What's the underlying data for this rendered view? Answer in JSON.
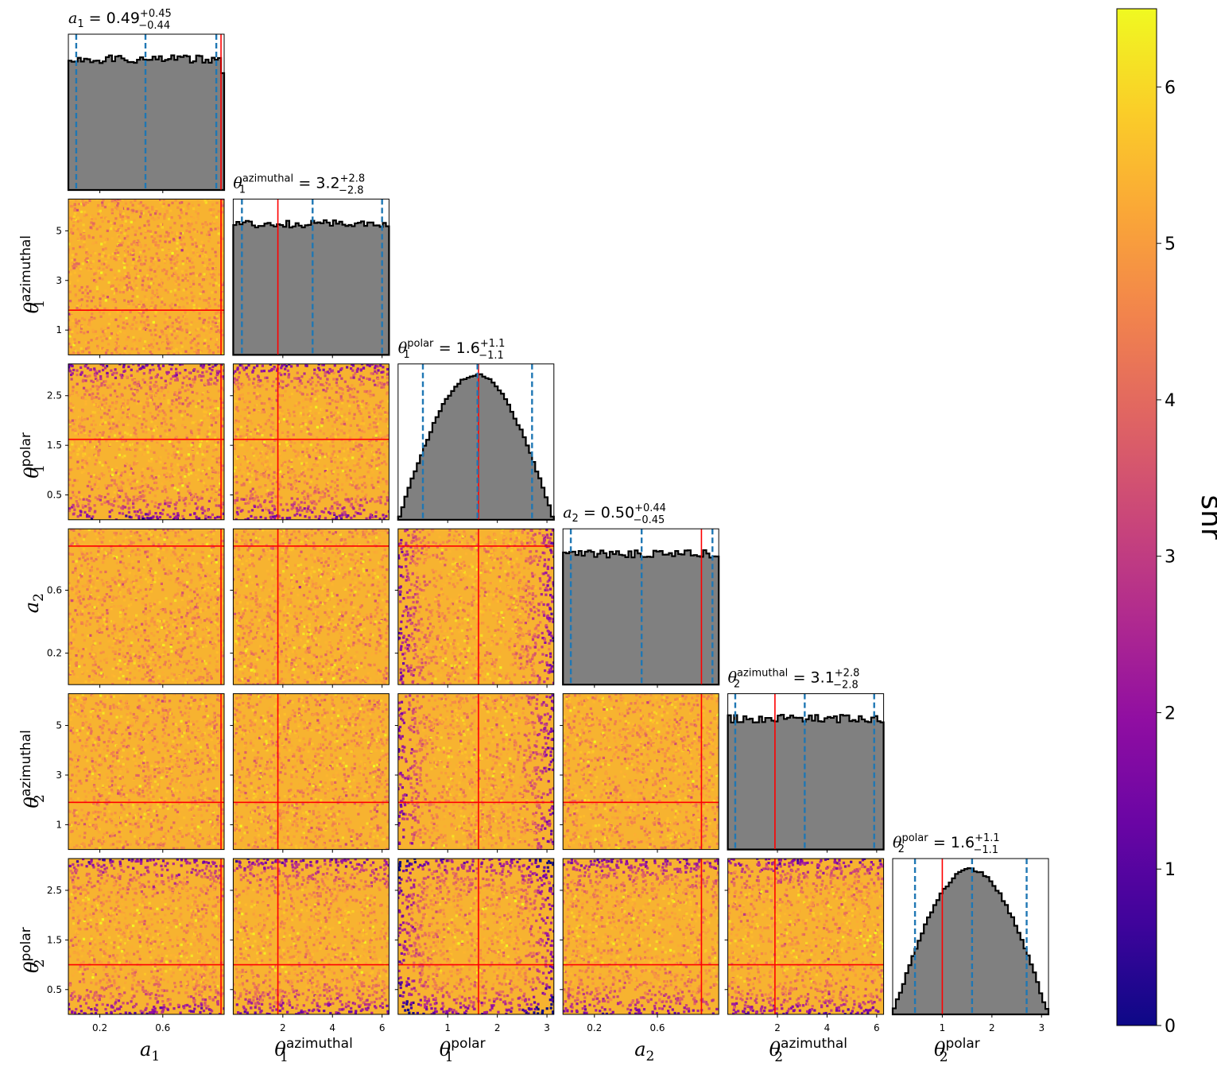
{
  "chart_data": {
    "type": "corner",
    "params": [
      {
        "key": "a1",
        "symbol": "a",
        "sub": "1",
        "sup": "",
        "range": [
          0.0,
          0.99
        ],
        "ticks": [
          0.2,
          0.6
        ],
        "tick_labels": [
          "0.2",
          "0.6"
        ],
        "truth": 0.97,
        "quantiles": [
          0.05,
          0.49,
          0.94
        ],
        "title": {
          "value": "0.49",
          "plus": "+0.45",
          "minus": "−0.44"
        },
        "hist_shape": "flat"
      },
      {
        "key": "theta1_az",
        "symbol": "θ",
        "sub": "1",
        "sup": "azimuthal",
        "range": [
          0.0,
          6.28
        ],
        "ticks": [
          2,
          4,
          6
        ],
        "ticks_y": [
          1,
          3,
          5
        ],
        "tick_labels": [
          "2",
          "4",
          "6"
        ],
        "tick_labels_y": [
          "1",
          "3",
          "5"
        ],
        "truth": 1.8,
        "quantiles": [
          0.35,
          3.2,
          6.0
        ],
        "title": {
          "value": "3.2",
          "plus": "+2.8",
          "minus": "−2.8"
        },
        "hist_shape": "flat"
      },
      {
        "key": "theta1_pol",
        "symbol": "θ",
        "sub": "1",
        "sup": "polar",
        "range": [
          0.0,
          3.14
        ],
        "ticks": [
          1,
          2,
          3
        ],
        "ticks_y": [
          0.5,
          1.5,
          2.5
        ],
        "tick_labels": [
          "1",
          "2",
          "3"
        ],
        "tick_labels_y": [
          "0.5",
          "1.5",
          "2.5"
        ],
        "truth": 1.62,
        "quantiles": [
          0.5,
          1.6,
          2.7
        ],
        "title": {
          "value": "1.6",
          "plus": "+1.1",
          "minus": "−1.1"
        },
        "hist_shape": "sine"
      },
      {
        "key": "a2",
        "symbol": "a",
        "sub": "2",
        "sup": "",
        "range": [
          0.0,
          0.99
        ],
        "ticks": [
          0.2,
          0.6
        ],
        "tick_labels": [
          "0.2",
          "0.6"
        ],
        "truth": 0.88,
        "quantiles": [
          0.05,
          0.5,
          0.95
        ],
        "title": {
          "value": "0.50",
          "plus": "+0.44",
          "minus": "−0.45"
        },
        "hist_shape": "flat"
      },
      {
        "key": "theta2_az",
        "symbol": "θ",
        "sub": "2",
        "sup": "azimuthal",
        "range": [
          0.0,
          6.28
        ],
        "ticks": [
          2,
          4,
          6
        ],
        "ticks_y": [
          1,
          3,
          5
        ],
        "tick_labels": [
          "2",
          "4",
          "6"
        ],
        "tick_labels_y": [
          "1",
          "3",
          "5"
        ],
        "truth": 1.9,
        "quantiles": [
          0.3,
          3.1,
          5.9
        ],
        "title": {
          "value": "3.1",
          "plus": "+2.8",
          "minus": "−2.8"
        },
        "hist_shape": "flat"
      },
      {
        "key": "theta2_pol",
        "symbol": "θ",
        "sub": "2",
        "sup": "polar",
        "range": [
          0.0,
          3.14
        ],
        "ticks": [
          1,
          2,
          3
        ],
        "ticks_y": [
          0.5,
          1.5,
          2.5
        ],
        "tick_labels": [
          "1",
          "2",
          "3"
        ],
        "tick_labels_y": [
          "0.5",
          "1.5",
          "2.5"
        ],
        "truth": 1.0,
        "quantiles": [
          0.45,
          1.6,
          2.7
        ],
        "title": {
          "value": "1.6",
          "plus": "+1.1",
          "minus": "−1.1"
        },
        "hist_shape": "sine"
      }
    ],
    "colorbar": {
      "label": "snr",
      "range": [
        0,
        6.5
      ],
      "ticks": [
        0,
        1,
        2,
        3,
        4,
        5,
        6
      ],
      "tick_labels": [
        "0",
        "1",
        "2",
        "3",
        "4",
        "5",
        "6"
      ],
      "colormap": "plasma"
    },
    "colors": {
      "hist_fill": "#808080",
      "hist_edge": "#000000",
      "truth_line": "#ff0000",
      "quantile_line": "#1f77b4"
    },
    "grid": false
  }
}
